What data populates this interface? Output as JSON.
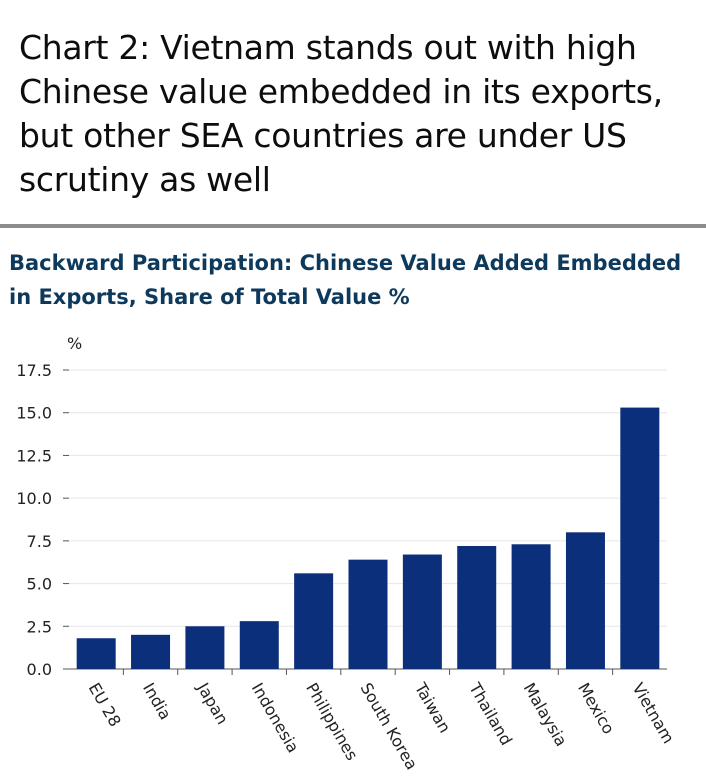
{
  "headline": "Chart 2: Vietnam stands out with high Chinese value embedded in its exports, but other SEA countries are under US scrutiny as well",
  "chart_data": {
    "type": "bar",
    "title": "Backward Participation: Chinese Value Added Embedded in Exports, Share of Total Value %",
    "ylabel": "%",
    "xlabel": "",
    "categories": [
      "EU 28",
      "India",
      "Japan",
      "Indonesia",
      "Philippines",
      "South Korea",
      "Taiwan",
      "Thailand",
      "Malaysia",
      "Mexico",
      "Vietnam"
    ],
    "values": [
      1.8,
      2.0,
      2.5,
      2.8,
      5.6,
      6.4,
      6.7,
      7.2,
      7.3,
      8.0,
      15.3
    ],
    "ylim": [
      0,
      17.5
    ],
    "yticks": [
      "0.0",
      "2.5",
      "5.0",
      "7.5",
      "10.0",
      "12.5",
      "15.0",
      "17.5"
    ],
    "grid": true,
    "legend": "none",
    "colors": {
      "bar": "#0b2f7a",
      "grid": "#e6e6e6",
      "axis": "#555555",
      "tick_text": "#222222",
      "title": "#0d3a5c"
    }
  }
}
